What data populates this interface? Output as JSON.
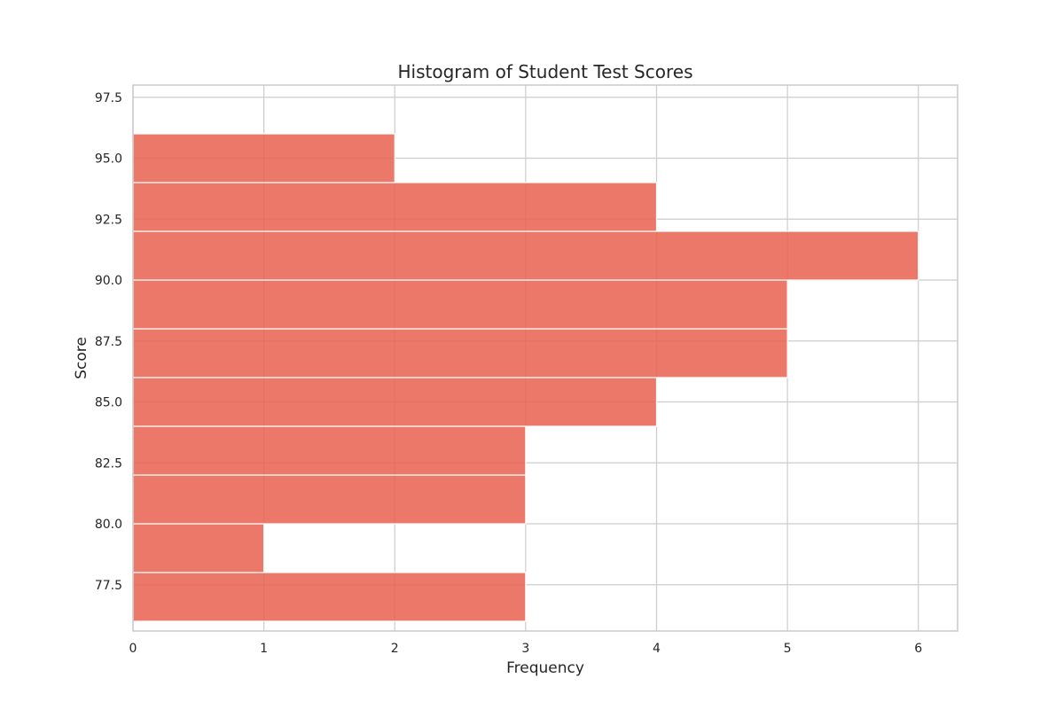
{
  "chart_data": {
    "type": "bar",
    "orientation": "horizontal",
    "title": "Histogram of Student Test Scores",
    "xlabel": "Frequency",
    "ylabel": "Score",
    "bins": [
      {
        "low": 76.0,
        "high": 78.0,
        "count": 3
      },
      {
        "low": 78.0,
        "high": 80.0,
        "count": 1
      },
      {
        "low": 80.0,
        "high": 82.0,
        "count": 3
      },
      {
        "low": 82.0,
        "high": 84.0,
        "count": 3
      },
      {
        "low": 84.0,
        "high": 86.0,
        "count": 4
      },
      {
        "low": 86.0,
        "high": 88.0,
        "count": 5
      },
      {
        "low": 88.0,
        "high": 90.0,
        "count": 5
      },
      {
        "low": 90.0,
        "high": 92.0,
        "count": 6
      },
      {
        "low": 92.0,
        "high": 94.0,
        "count": 4
      },
      {
        "low": 94.0,
        "high": 96.0,
        "count": 2
      }
    ],
    "xlim": [
      0,
      6.3
    ],
    "ylim": [
      75.6,
      98.0
    ],
    "xticks": [
      "0",
      "1",
      "2",
      "3",
      "4",
      "5",
      "6"
    ],
    "yticks": [
      "77.5",
      "80.0",
      "82.5",
      "85.0",
      "87.5",
      "90.0",
      "92.5",
      "95.0",
      "97.5"
    ],
    "grid": true,
    "bar_color": "#e8604f"
  }
}
